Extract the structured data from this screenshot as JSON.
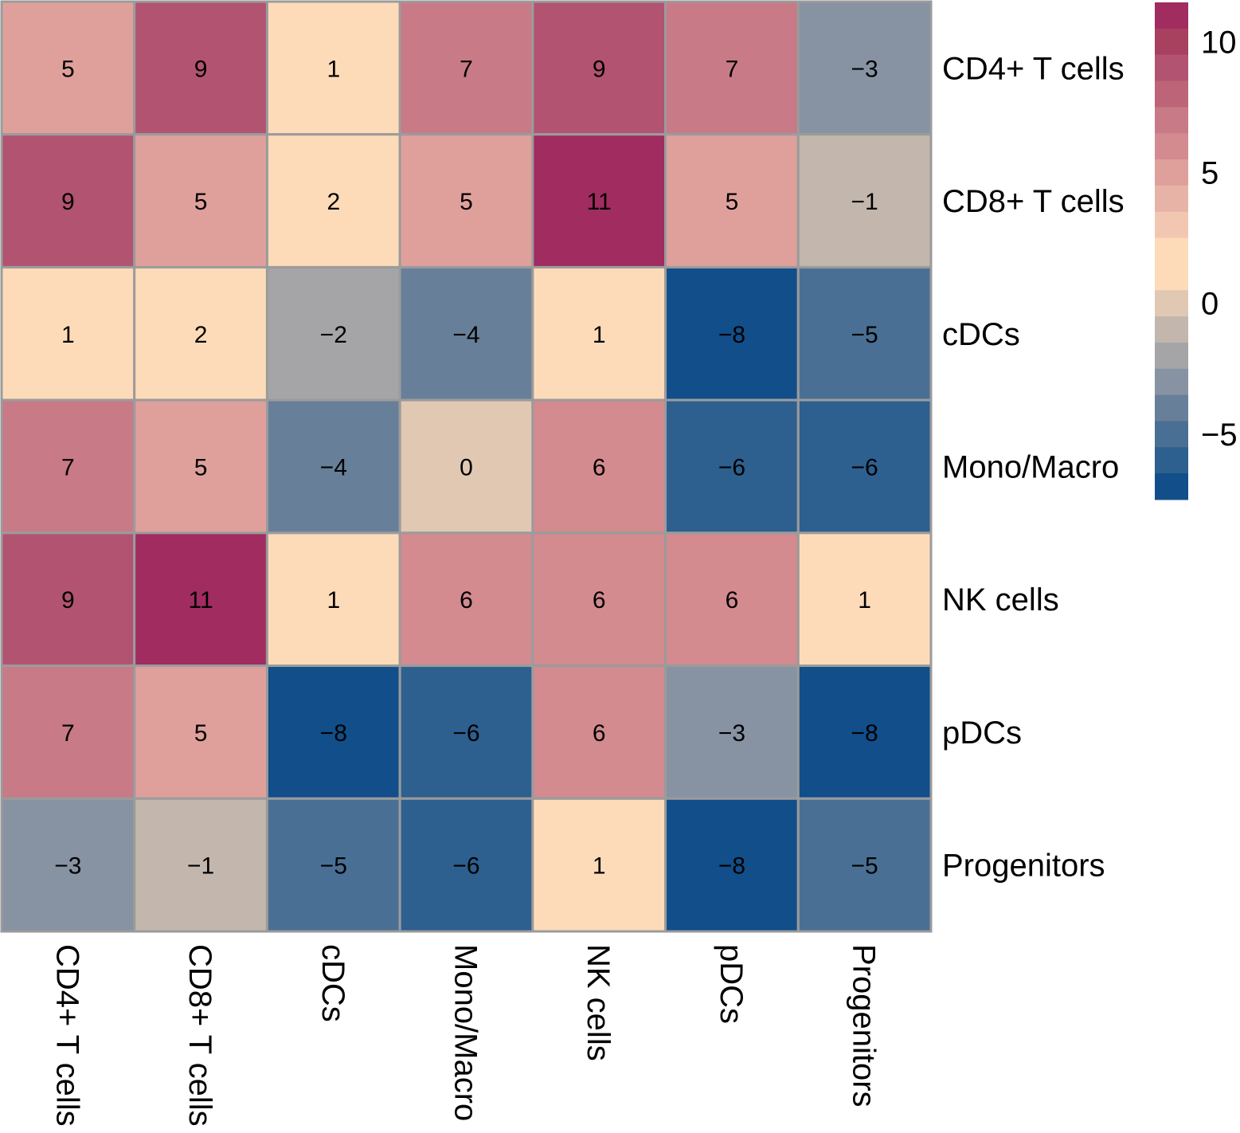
{
  "chart_data": {
    "type": "heatmap",
    "title": "",
    "row_labels": [
      "CD4+ T cells",
      "CD8+ T cells",
      "cDCs",
      "Mono/Macro",
      "NK cells",
      "pDCs",
      "Progenitors"
    ],
    "col_labels": [
      "CD4+ T cells",
      "CD8+ T cells",
      "cDCs",
      "Mono/Macro",
      "NK cells",
      "pDCs",
      "Progenitors"
    ],
    "values": [
      [
        5,
        9,
        1,
        7,
        9,
        7,
        -3
      ],
      [
        9,
        5,
        2,
        5,
        11,
        5,
        -1
      ],
      [
        1,
        2,
        -2,
        -4,
        1,
        -8,
        -5
      ],
      [
        7,
        5,
        -4,
        0,
        6,
        -6,
        -6
      ],
      [
        9,
        11,
        1,
        6,
        6,
        6,
        1
      ],
      [
        7,
        5,
        -8,
        -6,
        6,
        -3,
        -8
      ],
      [
        -3,
        -1,
        -5,
        -6,
        1,
        -8,
        -5
      ]
    ],
    "cell_text": [
      [
        "5",
        "9",
        "1",
        "7",
        "9",
        "7",
        "−3"
      ],
      [
        "9",
        "5",
        "2",
        "5",
        "11",
        "5",
        "−1"
      ],
      [
        "1",
        "2",
        "−2",
        "−4",
        "1",
        "−8",
        "−5"
      ],
      [
        "7",
        "5",
        "−4",
        "0",
        "6",
        "−6",
        "−6"
      ],
      [
        "9",
        "11",
        "1",
        "6",
        "6",
        "6",
        "1"
      ],
      [
        "7",
        "5",
        "−8",
        "−6",
        "6",
        "−3",
        "−8"
      ],
      [
        "−3",
        "−1",
        "−5",
        "−6",
        "1",
        "−8",
        "−5"
      ]
    ],
    "color_scale": {
      "range": [
        -8,
        11
      ],
      "bands": [
        {
          "value": 11,
          "color": "#A02C60"
        },
        {
          "value": 10,
          "color": "#A8405F"
        },
        {
          "value": 9,
          "color": "#B25372"
        },
        {
          "value": 8,
          "color": "#BE6479"
        },
        {
          "value": 7,
          "color": "#C87A86"
        },
        {
          "value": 6,
          "color": "#D38B8F"
        },
        {
          "value": 5,
          "color": "#DFA09C"
        },
        {
          "value": 4,
          "color": "#E8B3A7"
        },
        {
          "value": 3,
          "color": "#F2C7B1"
        },
        {
          "value": 2,
          "color": "#FDDBB9"
        },
        {
          "value": 1,
          "color": "#FDDBB9"
        },
        {
          "value": 0,
          "color": "#E0C8B3"
        },
        {
          "value": -1,
          "color": "#C2B6AD"
        },
        {
          "value": -2,
          "color": "#A5A5A7"
        },
        {
          "value": -3,
          "color": "#8793A3"
        },
        {
          "value": -4,
          "color": "#687F99"
        },
        {
          "value": -5,
          "color": "#4A6F94"
        },
        {
          "value": -6,
          "color": "#2D5F8F"
        },
        {
          "value": -7,
          "color": "#114E8A"
        },
        {
          "value": -8,
          "color": "#114E8A"
        }
      ],
      "legend_bands_top_to_bottom": [
        "#A02C60",
        "#A8405F",
        "#B25372",
        "#BE6479",
        "#C87A86",
        "#D38B8F",
        "#DFA09C",
        "#E8B3A7",
        "#F2C7B1",
        "#FDDBB9",
        "#FDDBB9",
        "#E0C8B3",
        "#C2B6AD",
        "#A5A5A7",
        "#8793A3",
        "#687F99",
        "#4A6F94",
        "#2D5F8F",
        "#114E8A"
      ],
      "legend_ticks": [
        {
          "value": 10,
          "label": "10"
        },
        {
          "value": 5,
          "label": "5"
        },
        {
          "value": 0,
          "label": "0"
        },
        {
          "value": -5,
          "label": "−5"
        }
      ]
    },
    "grid_color": "#9B9B9B",
    "legend_placement": "top-right",
    "xlabel": "",
    "ylabel": ""
  }
}
